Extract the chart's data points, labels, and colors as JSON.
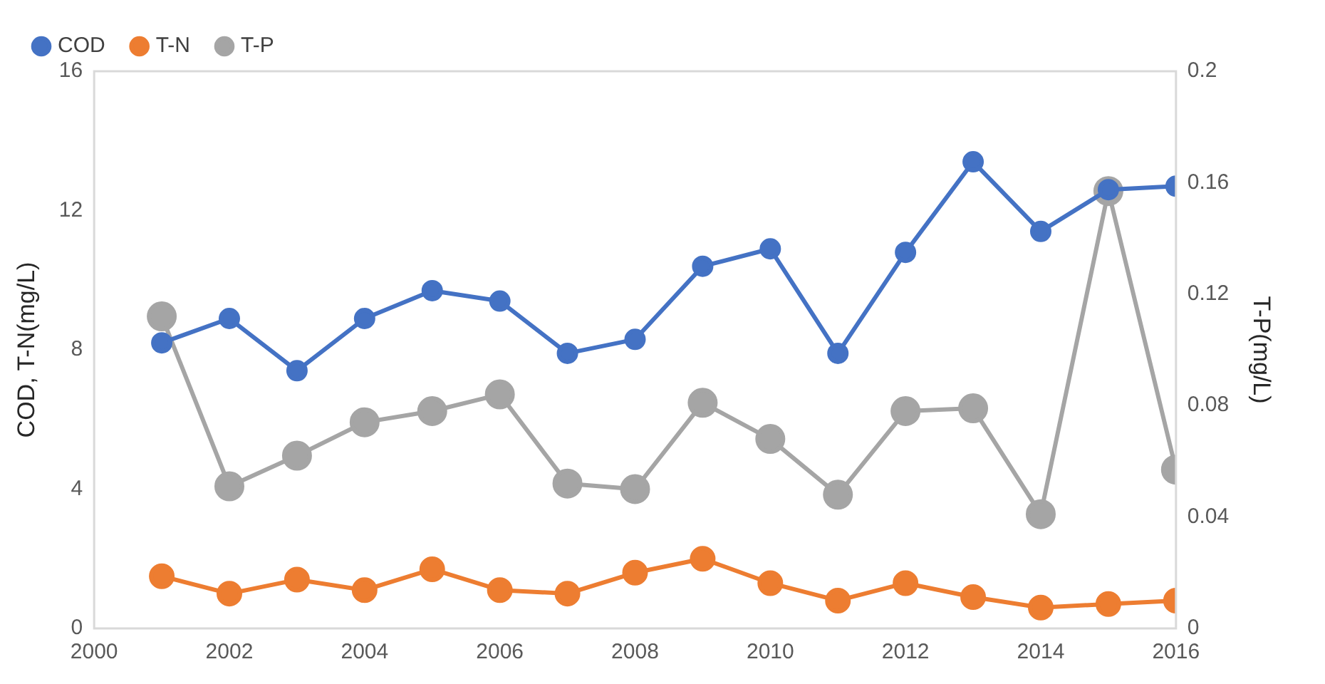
{
  "chart_data": {
    "type": "line",
    "ylabel": "COD, T-N(mg/L)",
    "y2label": "T-P(mg/L)",
    "x": [
      2001,
      2002,
      2003,
      2004,
      2005,
      2006,
      2007,
      2008,
      2009,
      2010,
      2011,
      2012,
      2013,
      2014,
      2015,
      2016
    ],
    "series": [
      {
        "name": "COD",
        "color": "#4472c4",
        "values": [
          8.2,
          8.9,
          7.4,
          8.9,
          9.7,
          9.4,
          7.9,
          8.3,
          10.4,
          10.9,
          7.9,
          10.8,
          13.4,
          11.4,
          12.6,
          12.7
        ]
      },
      {
        "name": "T-N",
        "color": "#ed7d31",
        "values": [
          1.5,
          1.0,
          1.4,
          1.1,
          1.7,
          1.1,
          1.0,
          1.6,
          2.0,
          1.3,
          0.8,
          1.3,
          0.9,
          0.6,
          0.7,
          0.8
        ]
      },
      {
        "name": "T-P",
        "color": "#a5a5a5",
        "axis": "y2",
        "values": [
          0.112,
          0.051,
          0.062,
          0.074,
          0.078,
          0.084,
          0.052,
          0.05,
          0.081,
          0.068,
          0.048,
          0.078,
          0.079,
          0.041,
          0.157,
          0.057
        ]
      }
    ],
    "xlim": [
      2000,
      2016
    ],
    "xticks": [
      2000,
      2002,
      2004,
      2006,
      2008,
      2010,
      2012,
      2014,
      2016
    ],
    "ylim": [
      0,
      16
    ],
    "yticks": [
      0,
      4,
      8,
      12,
      16
    ],
    "y2lim": [
      0,
      0.2
    ],
    "y2ticks": [
      0,
      0.04,
      0.08,
      0.12,
      0.16,
      0.2
    ],
    "grid": false,
    "legend": "top left",
    "marker": "circle",
    "line_style": "solid"
  }
}
